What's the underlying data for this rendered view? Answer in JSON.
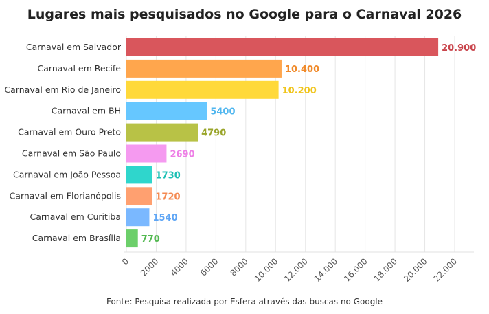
{
  "chart_data": {
    "type": "bar",
    "orientation": "horizontal",
    "title": "Lugares mais pesquisados no Google para o Carnaval 2026",
    "source": "Fonte: Pesquisa realizada por Esfera através das buscas no Google",
    "categories": [
      "Carnaval em Salvador",
      "Carnaval em Recife",
      "Carnaval em Rio de Janeiro",
      "Carnaval em BH",
      "Carnaval em Ouro Preto",
      "Carnaval em São Paulo",
      "Carnaval em João Pessoa",
      "Carnaval em Florianópolis",
      "Carnaval em Curitiba",
      "Carnaval em Brasília"
    ],
    "values": [
      20900,
      10400,
      10200,
      5400,
      4790,
      2690,
      1730,
      1720,
      1540,
      770
    ],
    "value_labels": [
      "20.900",
      "10.400",
      "10.200",
      "5400",
      "4790",
      "2690",
      "1730",
      "1720",
      "1540",
      "770"
    ],
    "colors": [
      "#d9565c",
      "#ffa64d",
      "#ffd93a",
      "#66c7ff",
      "#b8c246",
      "#f59af0",
      "#2fd6cc",
      "#ffa070",
      "#7ab8ff",
      "#6ccf6a"
    ],
    "label_colors": [
      "#c9454c",
      "#f08a2a",
      "#f0c419",
      "#4fb6ef",
      "#9aa52a",
      "#ee7fe6",
      "#1bbfb4",
      "#f48a52",
      "#5fa6f5",
      "#52b850"
    ],
    "xticks": [
      0,
      2000,
      4000,
      6000,
      8000,
      10000,
      12000,
      14000,
      16000,
      18000,
      20000,
      22000
    ],
    "xtick_labels": [
      "0",
      "2000",
      "4000",
      "6000",
      "8000",
      "10.000",
      "12.000",
      "14.000",
      "16.000",
      "18.000",
      "20.000",
      "22.000"
    ],
    "xlim": [
      0,
      23000
    ],
    "grid": true,
    "xlabel": "",
    "ylabel": ""
  }
}
